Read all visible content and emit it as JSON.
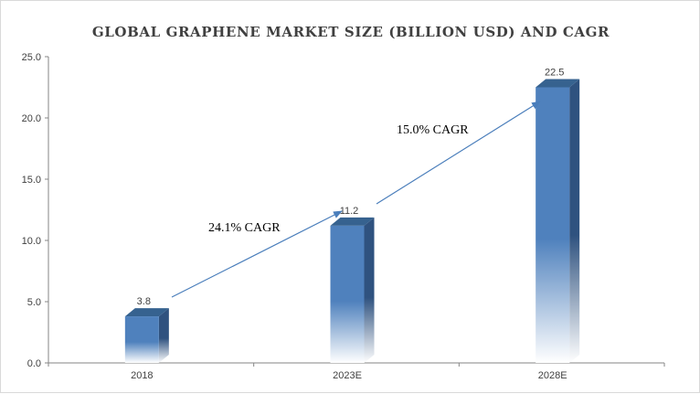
{
  "chart_data": {
    "type": "bar",
    "title": "GLOBAL GRAPHENE MARKET SIZE (BILLION USD) AND CAGR",
    "xlabel": "",
    "ylabel": "",
    "categories": [
      "2018",
      "2023E",
      "2028E"
    ],
    "values": [
      3.8,
      11.2,
      22.5
    ],
    "data_labels": [
      "3.8",
      "11.2",
      "22.5"
    ],
    "ylim": [
      0,
      25
    ],
    "yticks": [
      "0.0",
      "5.0",
      "10.0",
      "15.0",
      "20.0",
      "25.0"
    ],
    "grid": false,
    "legend": "none",
    "bar_style": "3d-gradient",
    "annotations": [
      {
        "text": "24.1% CAGR",
        "from": "2018",
        "to": "2023E"
      },
      {
        "text": "15.0% CAGR",
        "from": "2023E",
        "to": "2028E"
      }
    ],
    "colors": {
      "bar_front": "#4f81bd",
      "bar_side": "#2f527f",
      "bar_top": "#36628f",
      "arrow": "#4a7ebb",
      "axis": "#868686",
      "text": "#404040"
    }
  }
}
